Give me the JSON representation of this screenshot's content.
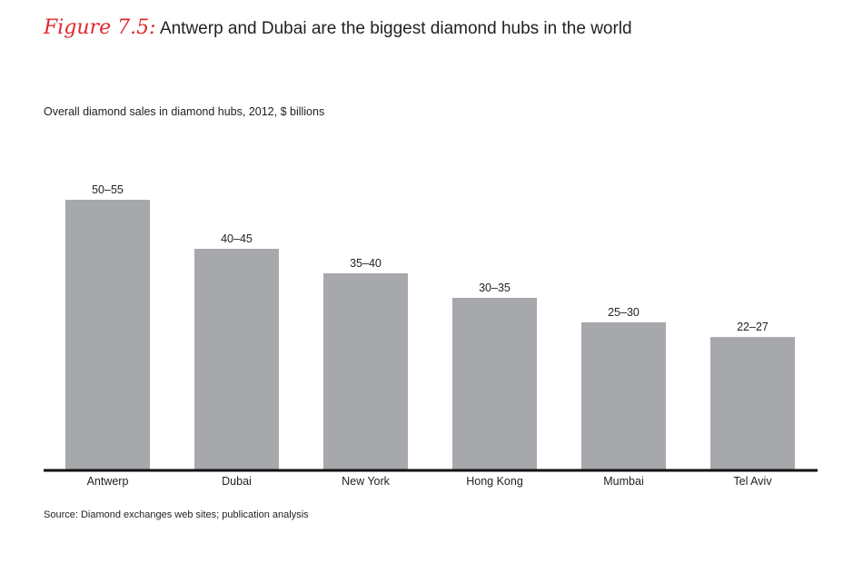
{
  "figure": {
    "label": "Figure 7.5:",
    "title": "Antwerp and Dubai are the biggest diamond hubs in the world",
    "subtitle": "Overall diamond sales in diamond hubs, 2012, $ billions",
    "source": "Source:  Diamond exchanges web sites; publication analysis"
  },
  "colors": {
    "bar": "#a7a8ab",
    "axis": "#111111",
    "accent": "#e0282e"
  },
  "chart_data": {
    "type": "bar",
    "title": "Antwerp and Dubai are the biggest diamond hubs in the world",
    "subtitle": "Overall diamond sales in diamond hubs, 2012, $ billions",
    "categories": [
      "Antwerp",
      "Dubai",
      "New York",
      "Hong Kong",
      "Mumbai",
      "Tel Aviv"
    ],
    "data_labels": [
      "50–55",
      "40–45",
      "35–40",
      "30–35",
      "25–30",
      "22–27"
    ],
    "series": [
      {
        "ranges": [
          [
            50,
            55
          ],
          [
            40,
            45
          ],
          [
            35,
            40
          ],
          [
            30,
            35
          ],
          [
            25,
            30
          ],
          [
            22,
            27
          ]
        ],
        "values": [
          55,
          45,
          40,
          35,
          30,
          27
        ]
      }
    ],
    "ylim": [
      0,
      60
    ],
    "xlabel": "",
    "ylabel": "",
    "grid": false,
    "legend": "none"
  }
}
